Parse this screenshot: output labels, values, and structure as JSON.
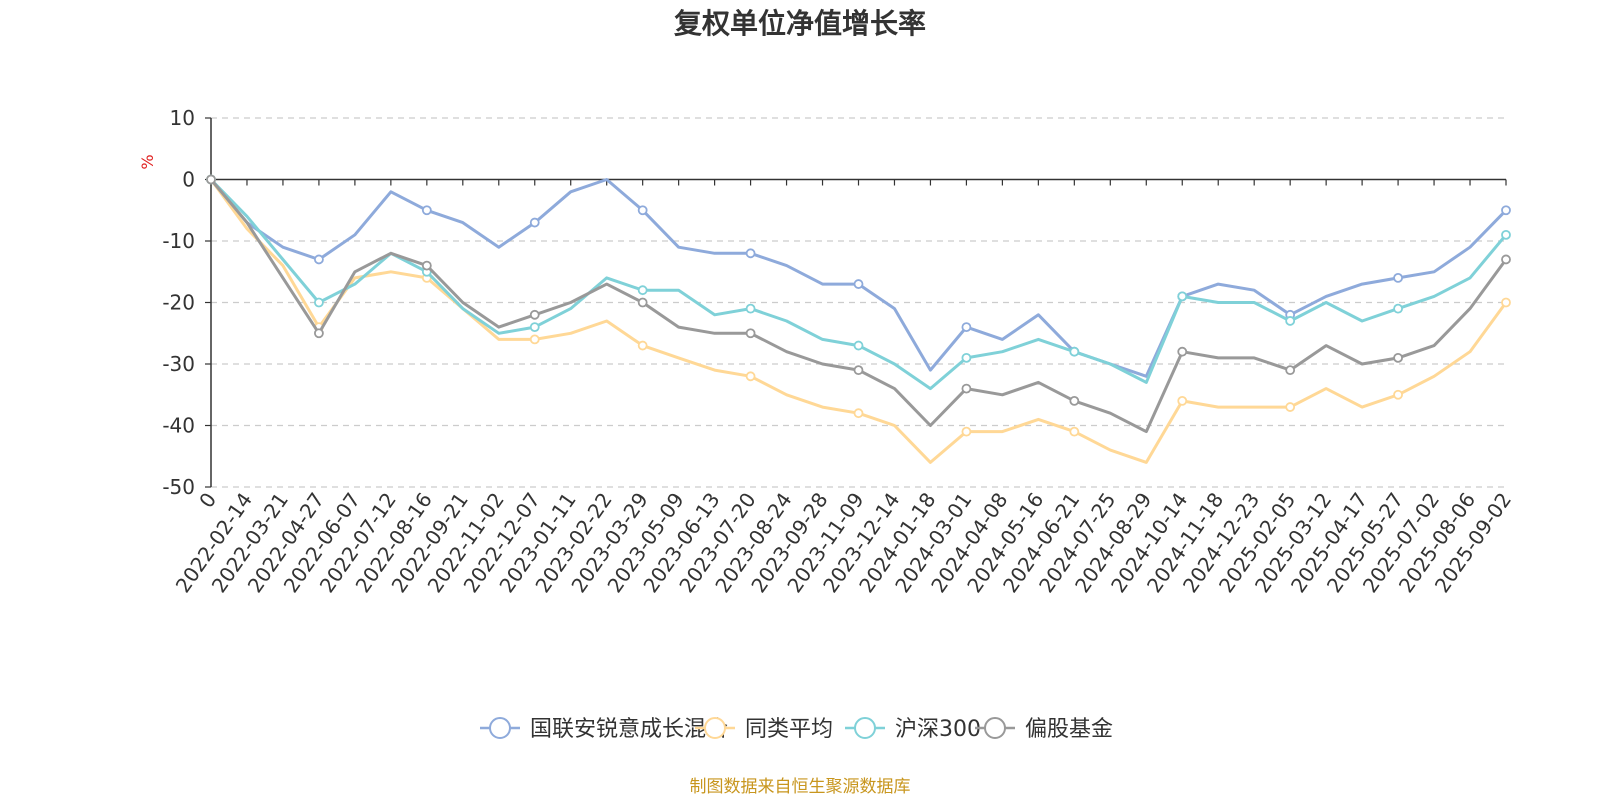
{
  "chart_data": {
    "type": "line",
    "title": "复权单位净值增长率",
    "ylabel": "%",
    "ylim": [
      -50,
      10
    ],
    "yticks": [
      10,
      0,
      -10,
      -20,
      -30,
      -40,
      -50
    ],
    "grid": true,
    "legend_position": "bottom",
    "x_tick_labels": [
      "0",
      "2022-02-14",
      "2022-03-21",
      "2022-04-27",
      "2022-06-07",
      "2022-07-12",
      "2022-08-16",
      "2022-09-21",
      "2022-11-02",
      "2022-12-07",
      "2023-01-11",
      "2023-02-22",
      "2023-03-29",
      "2023-05-09",
      "2023-06-13",
      "2023-07-20",
      "2023-08-24",
      "2023-09-28",
      "2023-11-09",
      "2023-12-14",
      "2024-01-18",
      "2024-03-01",
      "2024-04-08",
      "2024-05-16",
      "2024-06-21",
      "2024-07-25",
      "2024-08-29",
      "2024-10-14",
      "2024-11-18",
      "2024-12-23",
      "2025-02-05",
      "2025-03-12",
      "2025-04-17",
      "2025-05-27",
      "2025-07-02",
      "2025-08-06",
      "2025-09-02"
    ],
    "x": [
      "0",
      "2022-02-14",
      "2022-03-21",
      "2022-04-27",
      "2022-06-07",
      "2022-07-12",
      "2022-08-16",
      "2022-09-21",
      "2022-11-02",
      "2022-12-07",
      "2023-01-11",
      "2023-02-22",
      "2023-03-29",
      "2023-05-09",
      "2023-06-13",
      "2023-07-20",
      "2023-08-24",
      "2023-09-28",
      "2023-11-09",
      "2023-12-14",
      "2024-01-18",
      "2024-03-01",
      "2024-04-08",
      "2024-05-16",
      "2024-06-21",
      "2024-07-25",
      "2024-08-29",
      "2024-10-14",
      "2024-11-18",
      "2024-12-23",
      "2025-02-05",
      "2025-03-12",
      "2025-04-17",
      "2025-05-27",
      "2025-07-02",
      "2025-08-06",
      "2025-09-02"
    ],
    "series": [
      {
        "name": "国联安锐意成长混合",
        "color": "#8eaadb",
        "values": [
          0,
          -7,
          -11,
          -13,
          -9,
          -2,
          -5,
          -7,
          -11,
          -7,
          -2,
          0,
          -5,
          -11,
          -12,
          -12,
          -14,
          -17,
          -17,
          -21,
          -31,
          -24,
          -26,
          -22,
          -28,
          -30,
          -32,
          -19,
          -17,
          -18,
          -22,
          -19,
          -17,
          -16,
          -15,
          -11,
          -5
        ]
      },
      {
        "name": "同类平均",
        "color": "#ffd896",
        "values": [
          0,
          -8,
          -14,
          -24,
          -16,
          -15,
          -16,
          -21,
          -26,
          -26,
          -25,
          -23,
          -27,
          -29,
          -31,
          -32,
          -35,
          -37,
          -38,
          -40,
          -46,
          -41,
          -41,
          -39,
          -41,
          -44,
          -46,
          -36,
          -37,
          -37,
          -37,
          -34,
          -37,
          -35,
          -32,
          -28,
          -20
        ]
      },
      {
        "name": "沪深300",
        "color": "#7fd1d8",
        "values": [
          0,
          -6,
          -13,
          -20,
          -17,
          -12,
          -15,
          -21,
          -25,
          -24,
          -21,
          -16,
          -18,
          -18,
          -22,
          -21,
          -23,
          -26,
          -27,
          -30,
          -34,
          -29,
          -28,
          -26,
          -28,
          -30,
          -33,
          -19,
          -20,
          -20,
          -23,
          -20,
          -23,
          -21,
          -19,
          -16,
          -9
        ]
      },
      {
        "name": "偏股基金",
        "color": "#999999",
        "values": [
          0,
          -7,
          -16,
          -25,
          -15,
          -12,
          -14,
          -20,
          -24,
          -22,
          -20,
          -17,
          -20,
          -24,
          -25,
          -25,
          -28,
          -30,
          -31,
          -34,
          -40,
          -34,
          -35,
          -33,
          -36,
          -38,
          -41,
          -28,
          -29,
          -29,
          -31,
          -27,
          -30,
          -29,
          -27,
          -21,
          -13
        ]
      }
    ]
  },
  "legend": {
    "items": [
      {
        "label": "国联安锐意成长混合",
        "color": "#8eaadb"
      },
      {
        "label": "同类平均",
        "color": "#ffd896"
      },
      {
        "label": "沪深300",
        "color": "#7fd1d8"
      },
      {
        "label": "偏股基金",
        "color": "#999999"
      }
    ]
  },
  "footer": {
    "source": "制图数据来自恒生聚源数据库"
  }
}
